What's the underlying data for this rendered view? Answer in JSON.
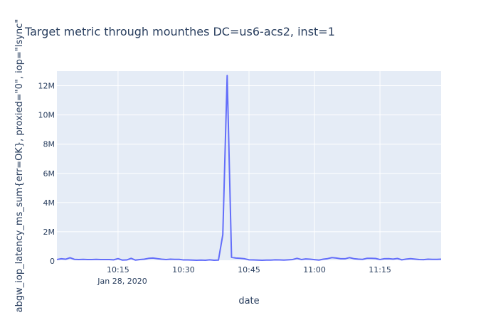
{
  "chart_data": {
    "type": "line",
    "title": "Target metric through mounthes DC=us6-acs2, inst=1",
    "xlabel": "date",
    "ylabel": "abgw_iop_latency_ms_sum{err=OK}, proxied=\"0\", iop=\"lsync\"",
    "date_label": "Jan 28, 2020",
    "x_ticks": [
      "10:15",
      "10:30",
      "10:45",
      "11:00",
      "11:15"
    ],
    "y_ticks": [
      "0",
      "2M",
      "4M",
      "6M",
      "8M",
      "10M",
      "12M"
    ],
    "ylim": [
      0,
      13000000
    ],
    "xlim": [
      "10:01",
      "11:29"
    ],
    "grid": true,
    "legend": "none",
    "colors": {
      "line": "#636efa",
      "plot_bg": "#e5ecf6",
      "text": "#2a3f5f"
    },
    "series": [
      {
        "x": [
          "10:01",
          "10:02",
          "10:03",
          "10:04",
          "10:05",
          "10:06",
          "10:07",
          "10:08",
          "10:09",
          "10:10",
          "10:11",
          "10:12",
          "10:13",
          "10:14",
          "10:15",
          "10:16",
          "10:17",
          "10:18",
          "10:19",
          "10:20",
          "10:21",
          "10:22",
          "10:23",
          "10:24",
          "10:25",
          "10:26",
          "10:27",
          "10:28",
          "10:29",
          "10:30",
          "10:31",
          "10:32",
          "10:33",
          "10:34",
          "10:35",
          "10:36",
          "10:37",
          "10:38",
          "10:39",
          "10:40",
          "10:41",
          "10:42",
          "10:43",
          "10:44",
          "10:45",
          "10:46",
          "10:47",
          "10:48",
          "10:49",
          "10:50",
          "10:51",
          "10:52",
          "10:53",
          "10:54",
          "10:55",
          "10:56",
          "10:57",
          "10:58",
          "10:59",
          "11:00",
          "11:01",
          "11:02",
          "11:03",
          "11:04",
          "11:05",
          "11:06",
          "11:07",
          "11:08",
          "11:09",
          "11:10",
          "11:11",
          "11:12",
          "11:13",
          "11:14",
          "11:15",
          "11:16",
          "11:17",
          "11:18",
          "11:19",
          "11:20",
          "11:21",
          "11:22",
          "11:23",
          "11:24",
          "11:25",
          "11:26",
          "11:27",
          "11:28",
          "11:29"
        ],
        "values": [
          100000,
          150000,
          120000,
          220000,
          110000,
          100000,
          110000,
          100000,
          100000,
          110000,
          100000,
          100000,
          100000,
          80000,
          160000,
          60000,
          70000,
          180000,
          60000,
          100000,
          120000,
          180000,
          200000,
          160000,
          120000,
          100000,
          120000,
          110000,
          110000,
          70000,
          70000,
          60000,
          50000,
          60000,
          50000,
          80000,
          50000,
          60000,
          1800000,
          12700000,
          250000,
          200000,
          180000,
          150000,
          80000,
          70000,
          60000,
          50000,
          60000,
          60000,
          80000,
          70000,
          60000,
          80000,
          100000,
          180000,
          100000,
          140000,
          120000,
          90000,
          60000,
          120000,
          160000,
          230000,
          200000,
          150000,
          150000,
          230000,
          160000,
          130000,
          110000,
          180000,
          180000,
          170000,
          100000,
          150000,
          160000,
          130000,
          170000,
          80000,
          130000,
          160000,
          130000,
          100000,
          90000,
          120000,
          110000,
          110000,
          120000
        ]
      }
    ]
  }
}
